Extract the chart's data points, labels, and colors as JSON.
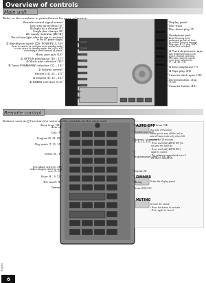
{
  "bg_color": "#ffffff",
  "page_number": "6",
  "title": "Overview of controls",
  "title_bg": "#2a2a2a",
  "title_color": "#ffffff",
  "section1_label": "Main unit",
  "section2_label": "Remote control",
  "subtitle1": "Refer to the numbers in parentheses for page reference.",
  "subtitle2": "Buttons such as Ⓐ function the same as the controls on the main unit."
}
